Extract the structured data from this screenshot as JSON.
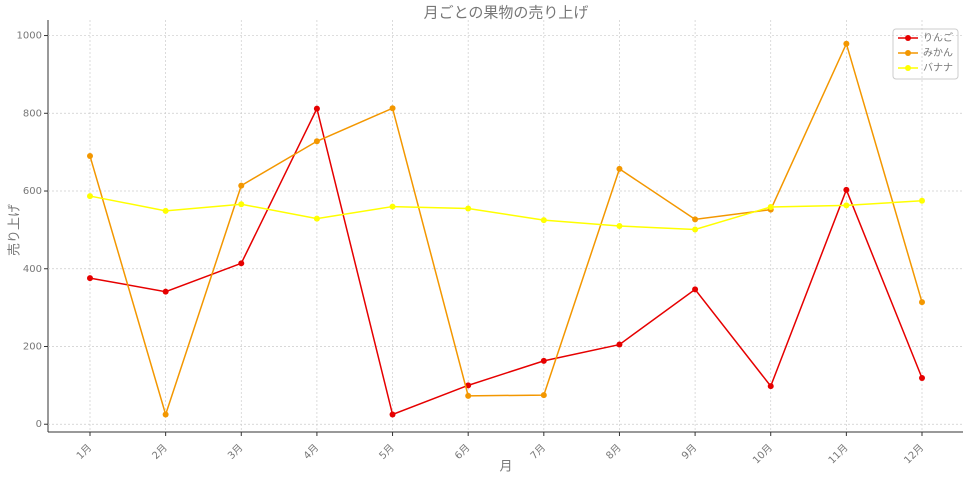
{
  "chart_data": {
    "type": "line",
    "title": "月ごとの果物の売り上げ",
    "x_label": "月",
    "y_label": "売り上げ",
    "categories": [
      "1月",
      "2月",
      "3月",
      "4月",
      "5月",
      "6月",
      "7月",
      "8月",
      "9月",
      "10月",
      "11月",
      "12月"
    ],
    "series": [
      {
        "name": "りんご",
        "color": "#e60000",
        "values": [
          376,
          341,
          414,
          812,
          25,
          100,
          163,
          205,
          347,
          98,
          603,
          119
        ]
      },
      {
        "name": "みかん",
        "color": "#f39700",
        "values": [
          690,
          25,
          614,
          728,
          813,
          73,
          75,
          657,
          527,
          552,
          979,
          314
        ]
      },
      {
        "name": "バナナ",
        "color": "#ffff00",
        "values": [
          587,
          549,
          566,
          529,
          560,
          555,
          525,
          510,
          501,
          559,
          563,
          575
        ]
      }
    ],
    "ylim": [
      -20,
      1040
    ],
    "yticks": [
      0,
      200,
      400,
      600,
      800,
      1000
    ],
    "grid": true,
    "legend": "upper right"
  }
}
